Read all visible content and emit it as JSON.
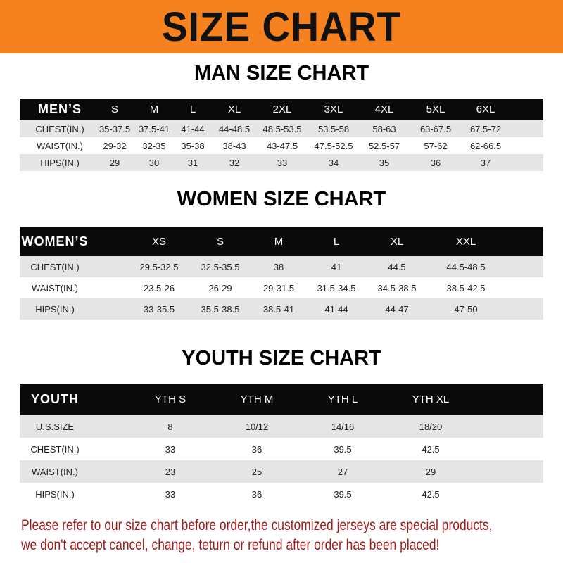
{
  "banner_title": "SIZE CHART",
  "men": {
    "title": "MAN SIZE CHART",
    "header": [
      "MEN’S",
      "S",
      "M",
      "L",
      "XL",
      "2XL",
      "3XL",
      "4XL",
      "5XL",
      "6XL"
    ],
    "rows": [
      [
        "CHEST(IN.)",
        "35-37.5",
        "37.5-41",
        "41-44",
        "44-48.5",
        "48.5-53.5",
        "53.5-58",
        "58-63",
        "63-67.5",
        "67.5-72"
      ],
      [
        "WAIST(IN.)",
        "29-32",
        "32-35",
        "35-38",
        "38-43",
        "43-47.5",
        "47.5-52.5",
        "52.5-57",
        "57-62",
        "62-66.5"
      ],
      [
        "HIPS(IN.)",
        "29",
        "30",
        "31",
        "32",
        "33",
        "34",
        "35",
        "36",
        "37"
      ]
    ]
  },
  "women": {
    "title": "WOMEN SIZE CHART",
    "header": [
      "WOMEN’S",
      "XS",
      "S",
      "M",
      "L",
      "XL",
      "XXL"
    ],
    "rows": [
      [
        "CHEST(IN.)",
        "29.5-32.5",
        "32.5-35.5",
        "38",
        "41",
        "44.5",
        "44.5-48.5"
      ],
      [
        "WAIST(IN.)",
        "23.5-26",
        "26-29",
        "29-31.5",
        "31.5-34.5",
        "34.5-38.5",
        "38.5-42.5"
      ],
      [
        "HIPS(IN.)",
        "33-35.5",
        "35.5-38.5",
        "38.5-41",
        "41-44",
        "44-47",
        "47-50"
      ]
    ]
  },
  "youth": {
    "title": "YOUTH SIZE CHART",
    "header": [
      "YOUTH",
      "YTH S",
      "YTH M",
      "YTH L",
      "YTH XL"
    ],
    "rows": [
      [
        "U.S.SIZE",
        "8",
        "10/12",
        "14/16",
        "18/20"
      ],
      [
        "CHEST(IN.)",
        "33",
        "36",
        "39.5",
        "42.5"
      ],
      [
        "WAIST(IN.)",
        "23",
        "25",
        "27",
        "29"
      ],
      [
        "HIPS(IN.)",
        "33",
        "36",
        "39.5",
        "42.5"
      ]
    ]
  },
  "footer": {
    "line1": "Please refer to our size chart before order,the customized jerseys are special products,",
    "line2": "we don't accept cancel, change, teturn or refund after order has been placed!"
  },
  "colors": {
    "banner": "#f5821f",
    "header_row": "#0a0a0a",
    "stripe": "#e5e5e5",
    "footer_text": "#a01c1c"
  }
}
